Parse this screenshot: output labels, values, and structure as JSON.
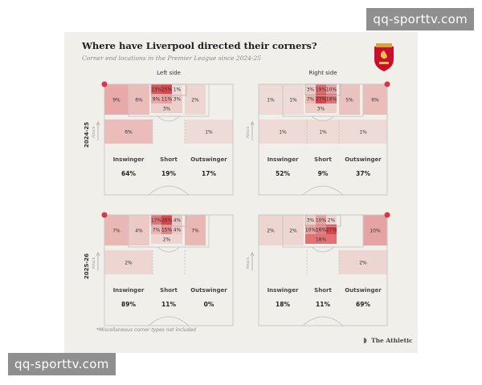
{
  "watermark": {
    "top": "qq-sporttv.com",
    "bottom": "qq-sporttv.com"
  },
  "header": {
    "title": "Where have Liverpool directed their corners?",
    "subtitle": "Corner end locations in the Premier League since 2024-25"
  },
  "footnote": "*Miscellaneous corner types not included",
  "brand": "The Athletic",
  "colors": {
    "heat": "#d6343c",
    "pitch_line": "#c8c8c8",
    "card": "#f1efe9",
    "marker": "#d8344a"
  },
  "chart_data": {
    "type": "heatmap",
    "title": "Where have Liverpool directed their corners?",
    "side_labels": [
      "Left side",
      "Right side"
    ],
    "season_labels": [
      "2024-25",
      "2025-26"
    ],
    "attack_label": "Attack",
    "type_labels": [
      "Inswinger",
      "Short",
      "Outswinger"
    ],
    "panels": [
      {
        "season": "2024-25",
        "side": "Left side",
        "zones": {
          "left_wide": "9%",
          "left_inner": "6%",
          "six_top": [
            "23%",
            "25%",
            "1%"
          ],
          "six_mid": [
            "9%",
            "11%",
            "3%"
          ],
          "six_bottom": "3%",
          "right_inner": "2%",
          "right_wide": "",
          "deep_left": "6%",
          "deep_right": "1%"
        },
        "types": {
          "inswinger": "64%",
          "short": "19%",
          "outswinger": "17%"
        }
      },
      {
        "season": "2024-25",
        "side": "Right side",
        "zones": {
          "left_wide": "1%",
          "left_inner": "1%",
          "six_top": [
            "3%",
            "19%",
            "10%"
          ],
          "six_mid": [
            "7%",
            "27%",
            "18%"
          ],
          "six_bottom": "3%",
          "right_inner": "5%",
          "right_wide": "6%",
          "deep_left": "1%",
          "deep_right": "1%",
          "deep_center": "1%"
        },
        "types": {
          "inswinger": "52%",
          "short": "9%",
          "outswinger": "37%"
        }
      },
      {
        "season": "2025-26",
        "side": "Left side",
        "zones": {
          "left_wide": "7%",
          "left_inner": "4%",
          "six_top": [
            "17%",
            "28%",
            "4%"
          ],
          "six_mid": [
            "7%",
            "15%",
            "4%"
          ],
          "six_bottom": "2%",
          "right_inner": "7%",
          "right_wide": "",
          "deep_left": "2%",
          "deep_right": ""
        },
        "types": {
          "inswinger": "89%",
          "short": "11%",
          "outswinger": "0%"
        }
      },
      {
        "season": "2025-26",
        "side": "Right side",
        "zones": {
          "left_wide": "2%",
          "left_inner": "2%",
          "six_top": [
            "3%",
            "10%",
            "2%"
          ],
          "six_mid": [
            "10%",
            "16%",
            "27%"
          ],
          "six_bottom": "18%",
          "right_inner": "",
          "right_wide": "10%",
          "deep_left": "",
          "deep_right": "2%"
        },
        "types": {
          "inswinger": "18%",
          "short": "11%",
          "outswinger": "69%"
        }
      }
    ]
  }
}
